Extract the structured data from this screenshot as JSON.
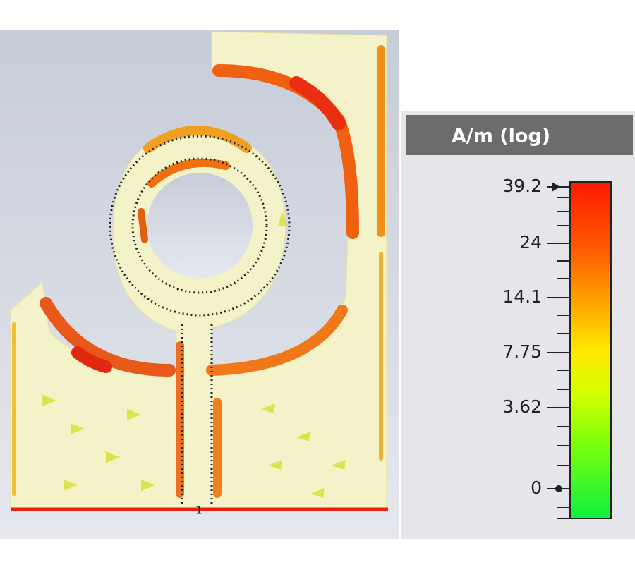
{
  "legend": {
    "title": "A/m (log)",
    "ticks": [
      "39.2",
      "24",
      "14.1",
      "7.75",
      "3.62",
      "0"
    ]
  },
  "port": {
    "label": "1"
  }
}
